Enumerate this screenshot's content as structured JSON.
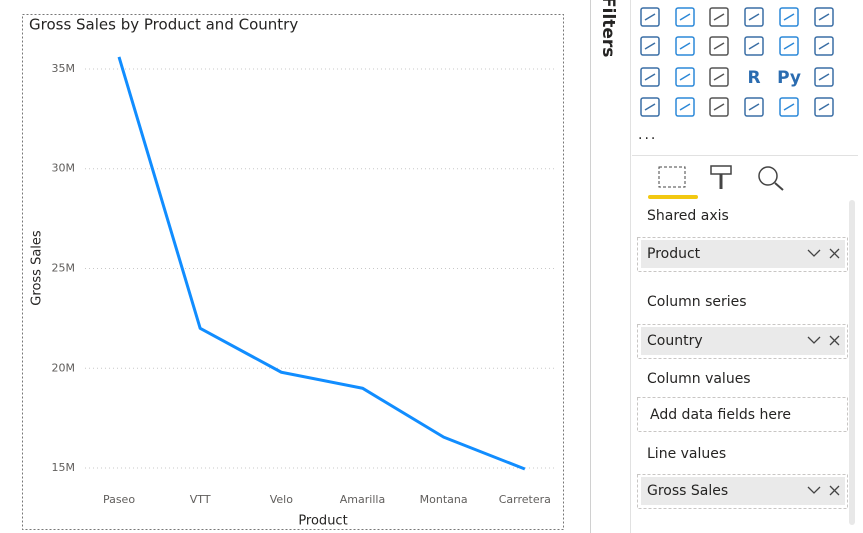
{
  "chart_data": {
    "type": "line",
    "title": "Gross Sales by Product and Country",
    "x_label": "Product",
    "y_label": "Gross Sales",
    "categories": [
      "Paseo",
      "VTT",
      "Velo",
      "Amarilla",
      "Montana",
      "Carretera"
    ],
    "values": [
      35600000,
      22000000,
      19800000,
      19000000,
      16550000,
      14950000
    ],
    "color": "#118dff",
    "ylim": [
      14150000,
      36200000
    ],
    "yticks": [
      {
        "value": 15000000,
        "label": "15M"
      },
      {
        "value": 20000000,
        "label": "20M"
      },
      {
        "value": 25000000,
        "label": "25M"
      },
      {
        "value": 30000000,
        "label": "30M"
      },
      {
        "value": 35000000,
        "label": "35M"
      }
    ],
    "grid": true
  },
  "pane": {
    "filters_tab": "Filters",
    "icon_texts": [
      "R",
      "Py"
    ],
    "more": "...",
    "wells": [
      {
        "label": "Shared axis",
        "field": "Product"
      },
      {
        "label": "Column series",
        "field": "Country"
      },
      {
        "label": "Column values",
        "placeholder": "Add data fields here"
      },
      {
        "label": "Line values",
        "field": "Gross Sales"
      }
    ]
  }
}
